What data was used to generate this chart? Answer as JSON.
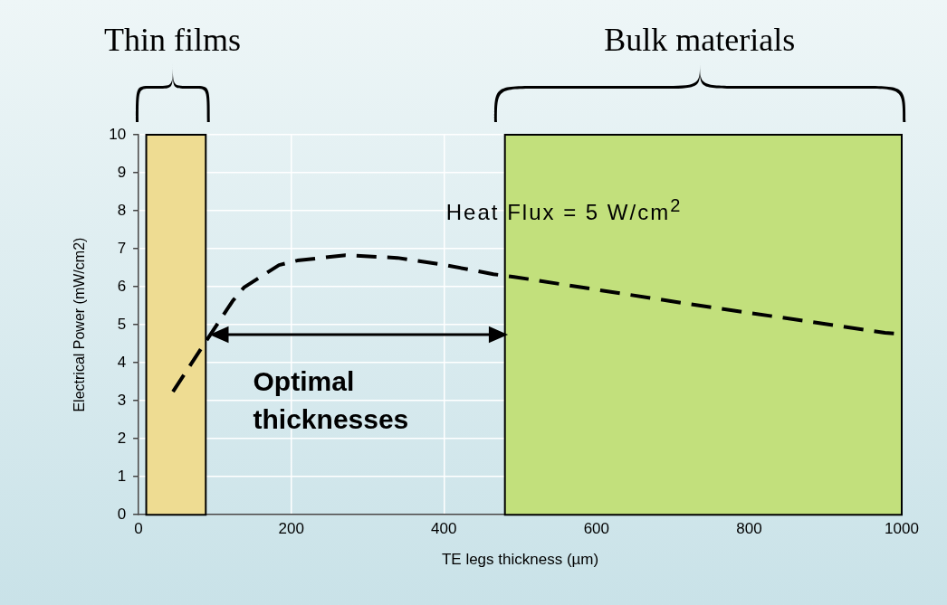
{
  "chart_data": {
    "type": "line",
    "xlabel": "TE legs thickness (µm)",
    "ylabel": "Electrical Power (mW/cm2)",
    "xlim": [
      0,
      1000
    ],
    "xticks": [
      0,
      200,
      400,
      600,
      800,
      1000
    ],
    "ylim": [
      0,
      10
    ],
    "yticks": [
      0,
      1,
      2,
      3,
      4,
      5,
      6,
      7,
      8,
      9,
      10
    ],
    "grid": true,
    "legend": false,
    "marker": "none",
    "line_style": "dashed",
    "series": [
      {
        "color": "#000000",
        "x": [
          45,
          93,
          123,
          138,
          184,
          208,
          271,
          339,
          402,
          465,
          492,
          720,
          978,
          998
        ],
        "values": [
          3.24,
          4.71,
          5.62,
          5.98,
          6.57,
          6.69,
          6.83,
          6.76,
          6.57,
          6.33,
          6.26,
          5.55,
          4.79,
          4.76
        ]
      }
    ],
    "bands": [
      {
        "axis": "x",
        "from": 10,
        "to": 88,
        "label": "Thin films",
        "color": "#eedc92"
      },
      {
        "axis": "x",
        "from": 480,
        "to": 1000,
        "label": "Bulk materials",
        "color": "#c2e07c"
      }
    ],
    "annotations": [
      "Heat Flux = 5 W/cm$^{2}$",
      "Optimal thicknesses"
    ]
  }
}
